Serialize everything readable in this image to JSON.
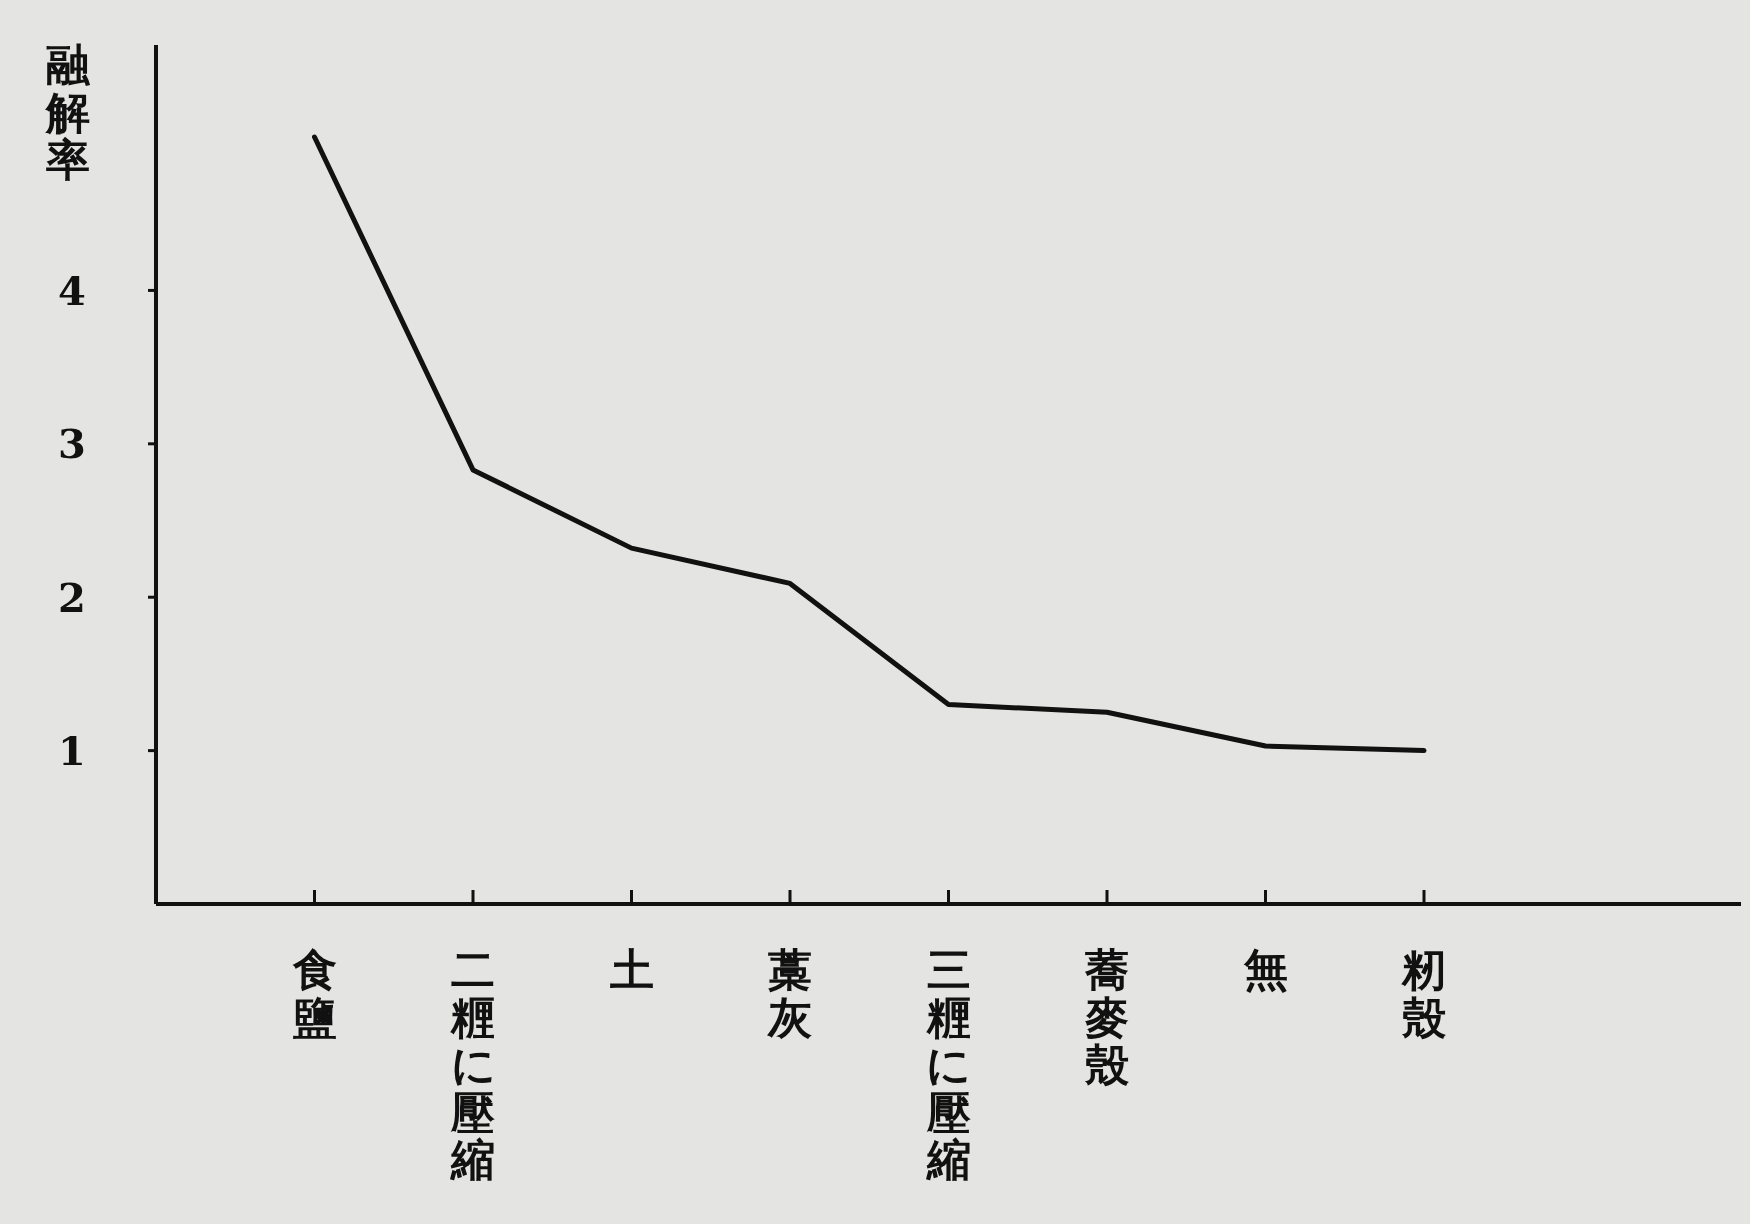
{
  "chart_data": {
    "type": "line",
    "ylabel": "融解率",
    "categories": [
      "食鹽",
      "二糎に壓縮",
      "土",
      "藁灰",
      "三糎に壓縮",
      "蕎麥殼",
      "無",
      "籾殼"
    ],
    "series": [
      {
        "color": "#111111",
        "values": [
          5.0,
          2.83,
          2.32,
          2.09,
          1.3,
          1.25,
          1.03,
          1.0
        ]
      }
    ],
    "ylim": [
      0,
      5.6
    ],
    "yticks": [
      1,
      2,
      3,
      4
    ],
    "grid": false,
    "line_style": "solid"
  }
}
